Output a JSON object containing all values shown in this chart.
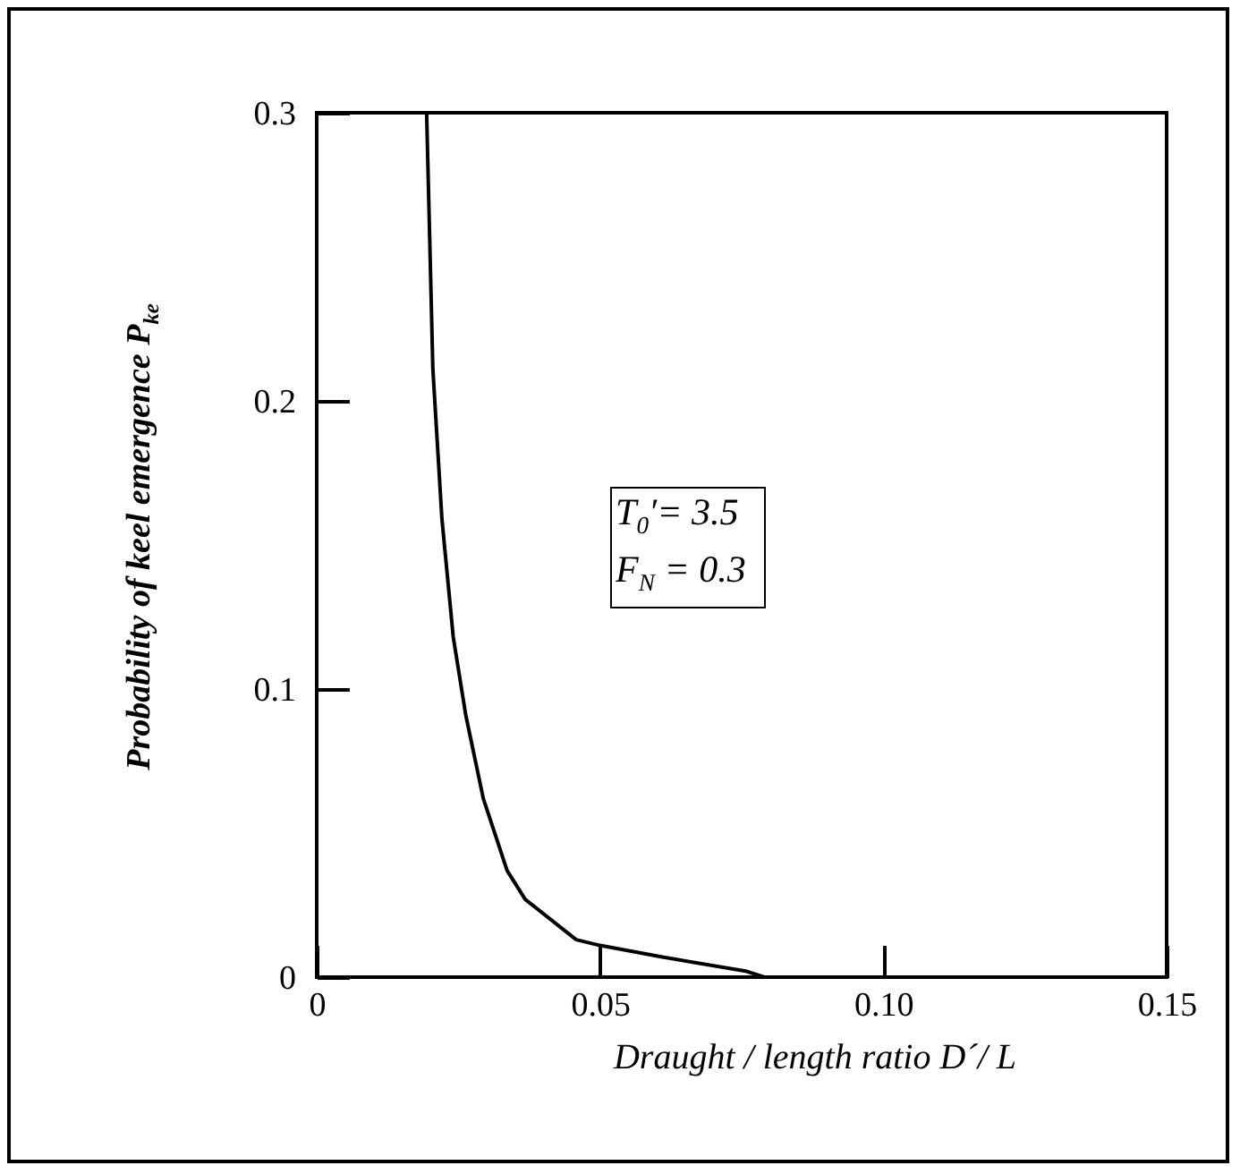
{
  "chart_data": {
    "type": "line",
    "xlabel": "Draught / length ratio D´/ L",
    "ylabel": "Probability of keel emergence P$_{ke}$",
    "annotations": [
      "T$_{0}$′= 3.5",
      "F$_{N}$ =  0.3"
    ],
    "x": [
      0.0194,
      0.0205,
      0.0221,
      0.0241,
      0.0263,
      0.0294,
      0.0336,
      0.0368,
      0.0458,
      0.05,
      0.061,
      0.0759,
      0.079
    ],
    "series": [
      {
        "color": "#000000",
        "values": [
          0.3,
          0.211,
          0.159,
          0.118,
          0.091,
          0.062,
          0.037,
          0.027,
          0.013,
          0.011,
          0.007,
          0.002,
          0
        ]
      }
    ],
    "xlim": [
      0,
      0.15
    ],
    "ylim": [
      0,
      0.3
    ],
    "xticks": [
      0,
      0.05,
      {
        "value": 0.1,
        "label": "0.10"
      },
      0.15
    ],
    "yticks": [
      0,
      0.1,
      0.2,
      0.3
    ],
    "grid": false,
    "marker": "none",
    "line_style": "solid"
  }
}
